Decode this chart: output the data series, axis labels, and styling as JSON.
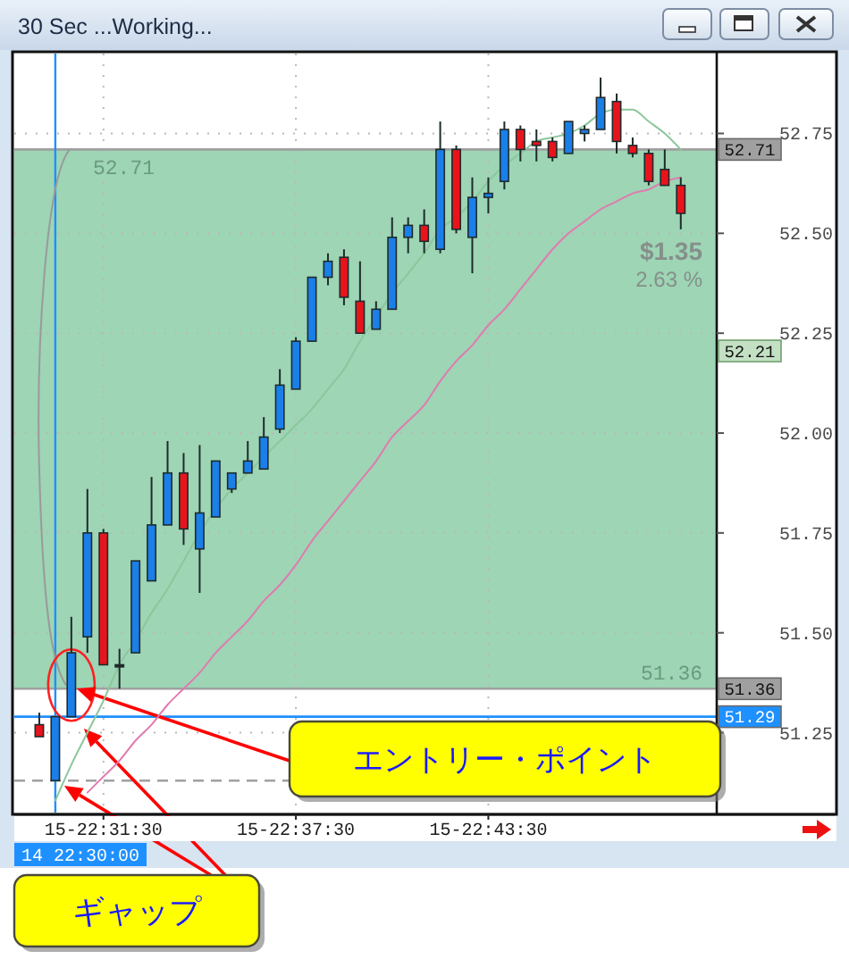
{
  "chart_data": {
    "type": "candlestick",
    "title": "30 Sec ...Working...",
    "categories": [
      null,
      null,
      null,
      null,
      "15-22:31:30",
      null,
      null,
      null,
      null,
      null,
      null,
      null,
      null,
      null,
      null,
      null,
      "15-22:37:30",
      null,
      null,
      null,
      null,
      null,
      null,
      null,
      null,
      null,
      null,
      null,
      "15-22:43:30",
      null,
      null,
      null,
      null,
      null,
      null,
      null,
      null,
      null,
      null,
      null,
      null
    ],
    "ohlc": [
      [
        51.27,
        51.3,
        51.24,
        51.24
      ],
      [
        51.13,
        51.29,
        51.13,
        51.29
      ],
      [
        51.29,
        51.54,
        51.29,
        51.45
      ],
      [
        51.49,
        51.86,
        51.45,
        51.75
      ],
      [
        51.75,
        51.76,
        51.42,
        51.42
      ],
      [
        51.42,
        51.46,
        51.36,
        51.42
      ],
      [
        51.45,
        51.68,
        51.45,
        51.68
      ],
      [
        51.63,
        51.89,
        51.63,
        51.77
      ],
      [
        51.77,
        51.98,
        51.77,
        51.9
      ],
      [
        51.9,
        51.95,
        51.72,
        51.76
      ],
      [
        51.71,
        51.97,
        51.6,
        51.8
      ],
      [
        51.79,
        51.93,
        51.79,
        51.93
      ],
      [
        51.86,
        51.9,
        51.85,
        51.9
      ],
      [
        51.9,
        51.98,
        51.9,
        51.93
      ],
      [
        51.91,
        52.04,
        51.91,
        51.99
      ],
      [
        52.01,
        52.16,
        52.0,
        52.12
      ],
      [
        52.11,
        52.24,
        52.11,
        52.23
      ],
      [
        52.23,
        52.39,
        52.23,
        52.39
      ],
      [
        52.39,
        52.45,
        52.37,
        52.43
      ],
      [
        52.44,
        52.46,
        52.32,
        52.34
      ],
      [
        52.33,
        52.43,
        52.25,
        52.25
      ],
      [
        52.26,
        52.33,
        52.26,
        52.31
      ],
      [
        52.31,
        52.54,
        52.31,
        52.49
      ],
      [
        52.49,
        52.54,
        52.45,
        52.52
      ],
      [
        52.52,
        52.56,
        52.45,
        52.48
      ],
      [
        52.46,
        52.78,
        52.45,
        52.71
      ],
      [
        52.71,
        52.72,
        52.5,
        52.51
      ],
      [
        52.49,
        52.64,
        52.4,
        52.59
      ],
      [
        52.59,
        52.64,
        52.55,
        52.6
      ],
      [
        52.63,
        52.78,
        52.61,
        52.76
      ],
      [
        52.76,
        52.77,
        52.68,
        52.71
      ],
      [
        52.73,
        52.76,
        52.68,
        52.72
      ],
      [
        52.73,
        52.74,
        52.68,
        52.69
      ],
      [
        52.7,
        52.78,
        52.7,
        52.78
      ],
      [
        52.75,
        52.77,
        52.73,
        52.76
      ],
      [
        52.76,
        52.89,
        52.76,
        52.84
      ],
      [
        52.83,
        52.85,
        52.7,
        52.73
      ],
      [
        52.72,
        52.74,
        52.69,
        52.7
      ],
      [
        52.7,
        52.71,
        52.62,
        52.63
      ],
      [
        52.66,
        52.71,
        52.62,
        52.62
      ],
      [
        52.62,
        52.64,
        52.51,
        52.55
      ]
    ],
    "colors": [
      "#e8141c",
      "#1a7fe8",
      "#1a7fe8",
      "#1a7fe8",
      "#e8141c",
      "#222222",
      "#1a7fe8",
      "#1a7fe8",
      "#1a7fe8",
      "#e8141c",
      "#1a7fe8",
      "#1a7fe8",
      "#1a7fe8",
      "#1a7fe8",
      "#1a7fe8",
      "#1a7fe8",
      "#1a7fe8",
      "#1a7fe8",
      "#1a7fe8",
      "#e8141c",
      "#e8141c",
      "#1a7fe8",
      "#1a7fe8",
      "#1a7fe8",
      "#e8141c",
      "#1a7fe8",
      "#e8141c",
      "#1a7fe8",
      "#1a7fe8",
      "#1a7fe8",
      "#e8141c",
      "#e8141c",
      "#e8141c",
      "#1a7fe8",
      "#1a7fe8",
      "#1a7fe8",
      "#e8141c",
      "#e8141c",
      "#e8141c",
      "#e8141c",
      "#e8141c"
    ],
    "series": [
      {
        "type": "line",
        "color": "#8cc79b",
        "values": [
          null,
          51.08,
          51.17,
          51.25,
          51.33,
          51.42,
          51.48,
          51.55,
          51.61,
          51.68,
          51.75,
          51.81,
          51.86,
          51.9,
          51.94,
          51.98,
          52.02,
          52.06,
          52.11,
          52.16,
          52.23,
          52.29,
          52.35,
          52.4,
          52.45,
          52.51,
          52.54,
          52.58,
          52.63,
          52.67,
          52.7,
          52.73,
          52.74,
          52.75,
          52.77,
          52.8,
          52.81,
          52.81,
          52.78,
          52.75,
          52.71
        ]
      },
      {
        "type": "line",
        "color": "#e07ab0",
        "values": [
          null,
          null,
          null,
          51.1,
          51.14,
          51.18,
          51.23,
          51.27,
          51.32,
          51.36,
          51.4,
          51.45,
          51.49,
          51.53,
          51.58,
          51.62,
          51.67,
          51.73,
          51.78,
          51.83,
          51.88,
          51.93,
          51.99,
          52.03,
          52.07,
          52.13,
          52.18,
          52.22,
          52.27,
          52.31,
          52.36,
          52.41,
          52.46,
          52.5,
          52.53,
          52.56,
          52.58,
          52.6,
          52.61,
          52.63,
          52.64
        ]
      }
    ],
    "ylim": [
      51.05,
      52.95
    ],
    "yticks": [
      51.25,
      {
        "value": 51.5,
        "label": "51.50"
      },
      51.75,
      {
        "value": 52,
        "label": "52.00"
      },
      52.25,
      {
        "value": 52.5,
        "label": "52.50"
      },
      52.75
    ],
    "grid": true,
    "ref_lines": [
      {
        "axis": "y",
        "value": 52.71,
        "label": "52.71",
        "color": "#a0a0a0"
      },
      {
        "axis": "y",
        "value": 51.36,
        "label": "51.36",
        "color": "#a0a0a0"
      },
      {
        "axis": "y",
        "value": 51.29,
        "label": "51.29",
        "color": "#1e90ff"
      },
      {
        "axis": "y",
        "value": 51.13,
        "color": "#a0a0a0",
        "line_style": "dashed"
      }
    ],
    "bands": [
      {
        "axis": "y",
        "from": 51.36,
        "to": 52.71,
        "label": "$1.35",
        "color": "#9dd5b5"
      }
    ],
    "annotations": [
      {
        "text": "エントリー・ポイント",
        "y": 51.36
      },
      "ギャップ",
      "2.63 %",
      "52.21",
      "14 22:30:00"
    ]
  }
}
